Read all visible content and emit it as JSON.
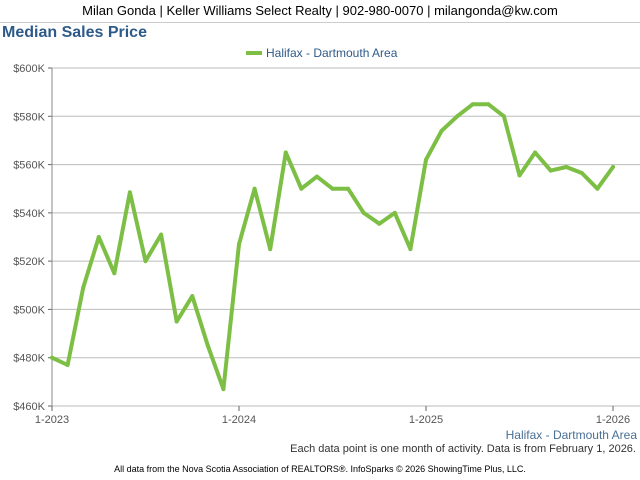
{
  "header": {
    "contact": "Milan Gonda | Keller Williams Select Realty | 902-980-0070 | milangonda@kw.com"
  },
  "chart_title": "Median Sales Price",
  "footnote": "Each data point is one month of activity. Data is from February 1, 2026.",
  "footer": "All data from the Nova Scotia Association of REALTORS®. InfoSparks © 2026 ShowingTime Plus, LLC.",
  "colors": {
    "series": "#7dbf45",
    "title": "#2e5a88",
    "grid": "#bbbbbb",
    "axis_text": "#555555",
    "x_label": "#4a6f94"
  },
  "chart_data": {
    "type": "line",
    "title": "Median Sales Price",
    "xlabel": "Halifax - Dartmouth Area",
    "ylabel": "",
    "legend_position": "top",
    "grid": true,
    "ylim": [
      460000,
      600000
    ],
    "y_ticks": [
      460000,
      480000,
      500000,
      520000,
      540000,
      560000,
      580000,
      600000
    ],
    "y_tick_labels": [
      "$460K",
      "$480K",
      "$500K",
      "$520K",
      "$540K",
      "$560K",
      "$580K",
      "$600K"
    ],
    "x_tick_labels": [
      "1-2023",
      "1-2024",
      "1-2025",
      "1-2026"
    ],
    "x": [
      "2023-01",
      "2023-02",
      "2023-03",
      "2023-04",
      "2023-05",
      "2023-06",
      "2023-07",
      "2023-08",
      "2023-09",
      "2023-10",
      "2023-11",
      "2023-12",
      "2024-01",
      "2024-02",
      "2024-03",
      "2024-04",
      "2024-05",
      "2024-06",
      "2024-07",
      "2024-08",
      "2024-09",
      "2024-10",
      "2024-11",
      "2024-12",
      "2025-01",
      "2025-02",
      "2025-03",
      "2025-04",
      "2025-05",
      "2025-06",
      "2025-07",
      "2025-08",
      "2025-09",
      "2025-10",
      "2025-11",
      "2025-12",
      "2026-01"
    ],
    "series": [
      {
        "name": "Halifax - Dartmouth Area",
        "values": [
          480000,
          477000,
          509000,
          530000,
          515000,
          548500,
          520000,
          531000,
          495000,
          505500,
          485000,
          467000,
          527000,
          550000,
          525000,
          565000,
          550000,
          555000,
          550000,
          550000,
          540000,
          535500,
          540000,
          525000,
          562000,
          574000,
          580000,
          585000,
          585000,
          580000,
          555500,
          565000,
          557500,
          559000,
          556500,
          550000,
          559000
        ]
      }
    ]
  }
}
